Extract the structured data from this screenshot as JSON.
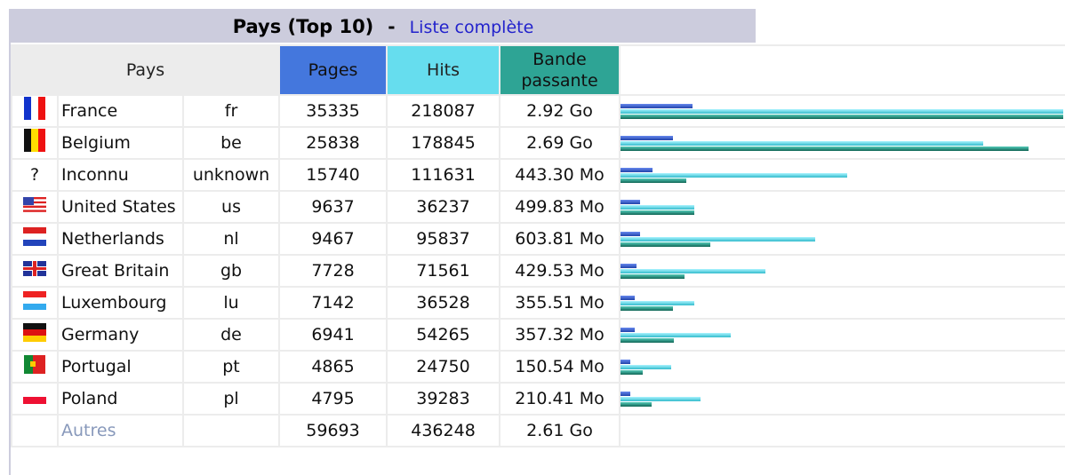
{
  "header": {
    "title": "Pays (Top 10)",
    "separator": "-",
    "link": "Liste complète"
  },
  "table": {
    "columns": {
      "country": "Pays",
      "pages": "Pages",
      "hits": "Hits",
      "bandwidth": "Bande passante"
    },
    "rows": [
      {
        "country": "France",
        "code": "fr",
        "pages": 35335,
        "hits": 218087,
        "bandwidth": {
          "value": 2990.08,
          "label": "2.92 Go"
        }
      },
      {
        "country": "Belgium",
        "code": "be",
        "pages": 25838,
        "hits": 178845,
        "bandwidth": {
          "value": 2754.56,
          "label": "2.69 Go"
        }
      },
      {
        "flag": "?",
        "country": "Inconnu",
        "code": "unknown",
        "pages": 15740,
        "hits": 111631,
        "bandwidth": {
          "value": 443.3,
          "label": "443.30 Mo"
        }
      },
      {
        "country": "United States",
        "code": "us",
        "pages": 9637,
        "hits": 36237,
        "bandwidth": {
          "value": 499.83,
          "label": "499.83 Mo"
        }
      },
      {
        "country": "Netherlands",
        "code": "nl",
        "pages": 9467,
        "hits": 95837,
        "bandwidth": {
          "value": 603.81,
          "label": "603.81 Mo"
        }
      },
      {
        "country": "Great Britain",
        "code": "gb",
        "pages": 7728,
        "hits": 71561,
        "bandwidth": {
          "value": 429.53,
          "label": "429.53 Mo"
        }
      },
      {
        "country": "Luxembourg",
        "code": "lu",
        "pages": 7142,
        "hits": 36528,
        "bandwidth": {
          "value": 355.51,
          "label": "355.51 Mo"
        }
      },
      {
        "country": "Germany",
        "code": "de",
        "pages": 6941,
        "hits": 54265,
        "bandwidth": {
          "value": 357.32,
          "label": "357.32 Mo"
        }
      },
      {
        "country": "Portugal",
        "code": "pt",
        "pages": 4865,
        "hits": 24750,
        "bandwidth": {
          "value": 150.54,
          "label": "150.54 Mo"
        }
      },
      {
        "country": "Poland",
        "code": "pl",
        "pages": 4795,
        "hits": 39283,
        "bandwidth": {
          "value": 210.41,
          "label": "210.41 Mo"
        }
      }
    ],
    "others": {
      "label": "Autres",
      "pages": 59693,
      "hits": 436248,
      "bandwidth": {
        "value": 2672.64,
        "label": "2.61 Go"
      }
    }
  }
}
